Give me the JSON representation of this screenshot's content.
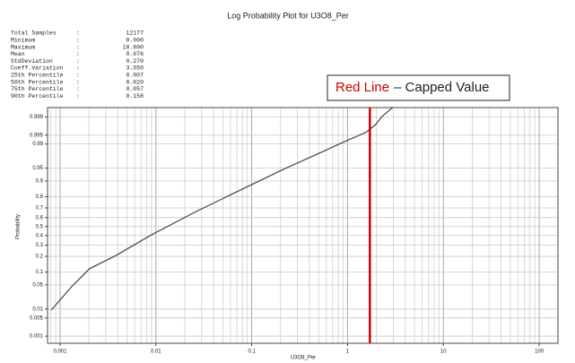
{
  "chart_data": {
    "type": "line",
    "title": "Log Probability Plot for U3O8_Per",
    "x_label": "U3O8_Per",
    "y_label": "Probability",
    "stats": [
      {
        "label": "Total Samples",
        "value": "12177"
      },
      {
        "label": "Minimum",
        "value": "0.000"
      },
      {
        "label": "Maximum",
        "value": "10.800"
      },
      {
        "label": "Mean",
        "value": "0.076"
      },
      {
        "label": "StdDeviation",
        "value": "0.270"
      },
      {
        "label": "Coeff.Variation",
        "value": "3.550"
      },
      {
        "label": "25th Percentile",
        "value": "0.007"
      },
      {
        "label": "50th Percentile",
        "value": "0.020"
      },
      {
        "label": "75th Percentile",
        "value": "0.057"
      },
      {
        "label": "90th Percentile",
        "value": "0.158"
      }
    ],
    "annotation": {
      "highlight": "Red Line",
      "text": "– Capped Value"
    },
    "cap_line": {
      "value": 1.71,
      "color": "#d00000"
    },
    "x_scale": "log",
    "y_scale": "probability",
    "grid": true,
    "xlim": [
      0.00074,
      157
    ],
    "ylim": [
      0.0005,
      0.9996
    ],
    "xticks": [
      0.001,
      0.01,
      0.1,
      1,
      10,
      100
    ],
    "xminorticks": [
      0.0008,
      0.0009,
      0.002,
      0.003,
      0.004,
      0.005,
      0.006,
      0.007,
      0.008,
      0.009,
      0.02,
      0.03,
      0.04,
      0.05,
      0.06,
      0.07,
      0.08,
      0.09,
      0.2,
      0.3,
      0.4,
      0.5,
      0.6,
      0.7,
      0.8,
      0.9,
      2,
      3,
      4,
      5,
      6,
      7,
      8,
      9,
      20,
      30,
      40,
      50,
      60,
      70,
      80,
      90
    ],
    "yticks": [
      0.001,
      0.005,
      0.01,
      0.05,
      0.1,
      0.2,
      0.3,
      0.4,
      0.5,
      0.6,
      0.7,
      0.8,
      0.9,
      0.95,
      0.99,
      0.995,
      0.999
    ],
    "series": [
      {
        "name": "U3O8_Per",
        "color": "#444444",
        "x": [
          0.00081,
          0.00132,
          0.00203,
          0.00387,
          0.0091,
          0.0267,
          0.085,
          0.228,
          0.538,
          0.863,
          1.57,
          1.95,
          2.31,
          2.99
        ],
        "values": [
          0.0093,
          0.045,
          0.117,
          0.209,
          0.41,
          0.667,
          0.862,
          0.95,
          0.982,
          0.9907,
          0.9961,
          0.9979,
          0.99907,
          0.99962
        ]
      }
    ]
  }
}
